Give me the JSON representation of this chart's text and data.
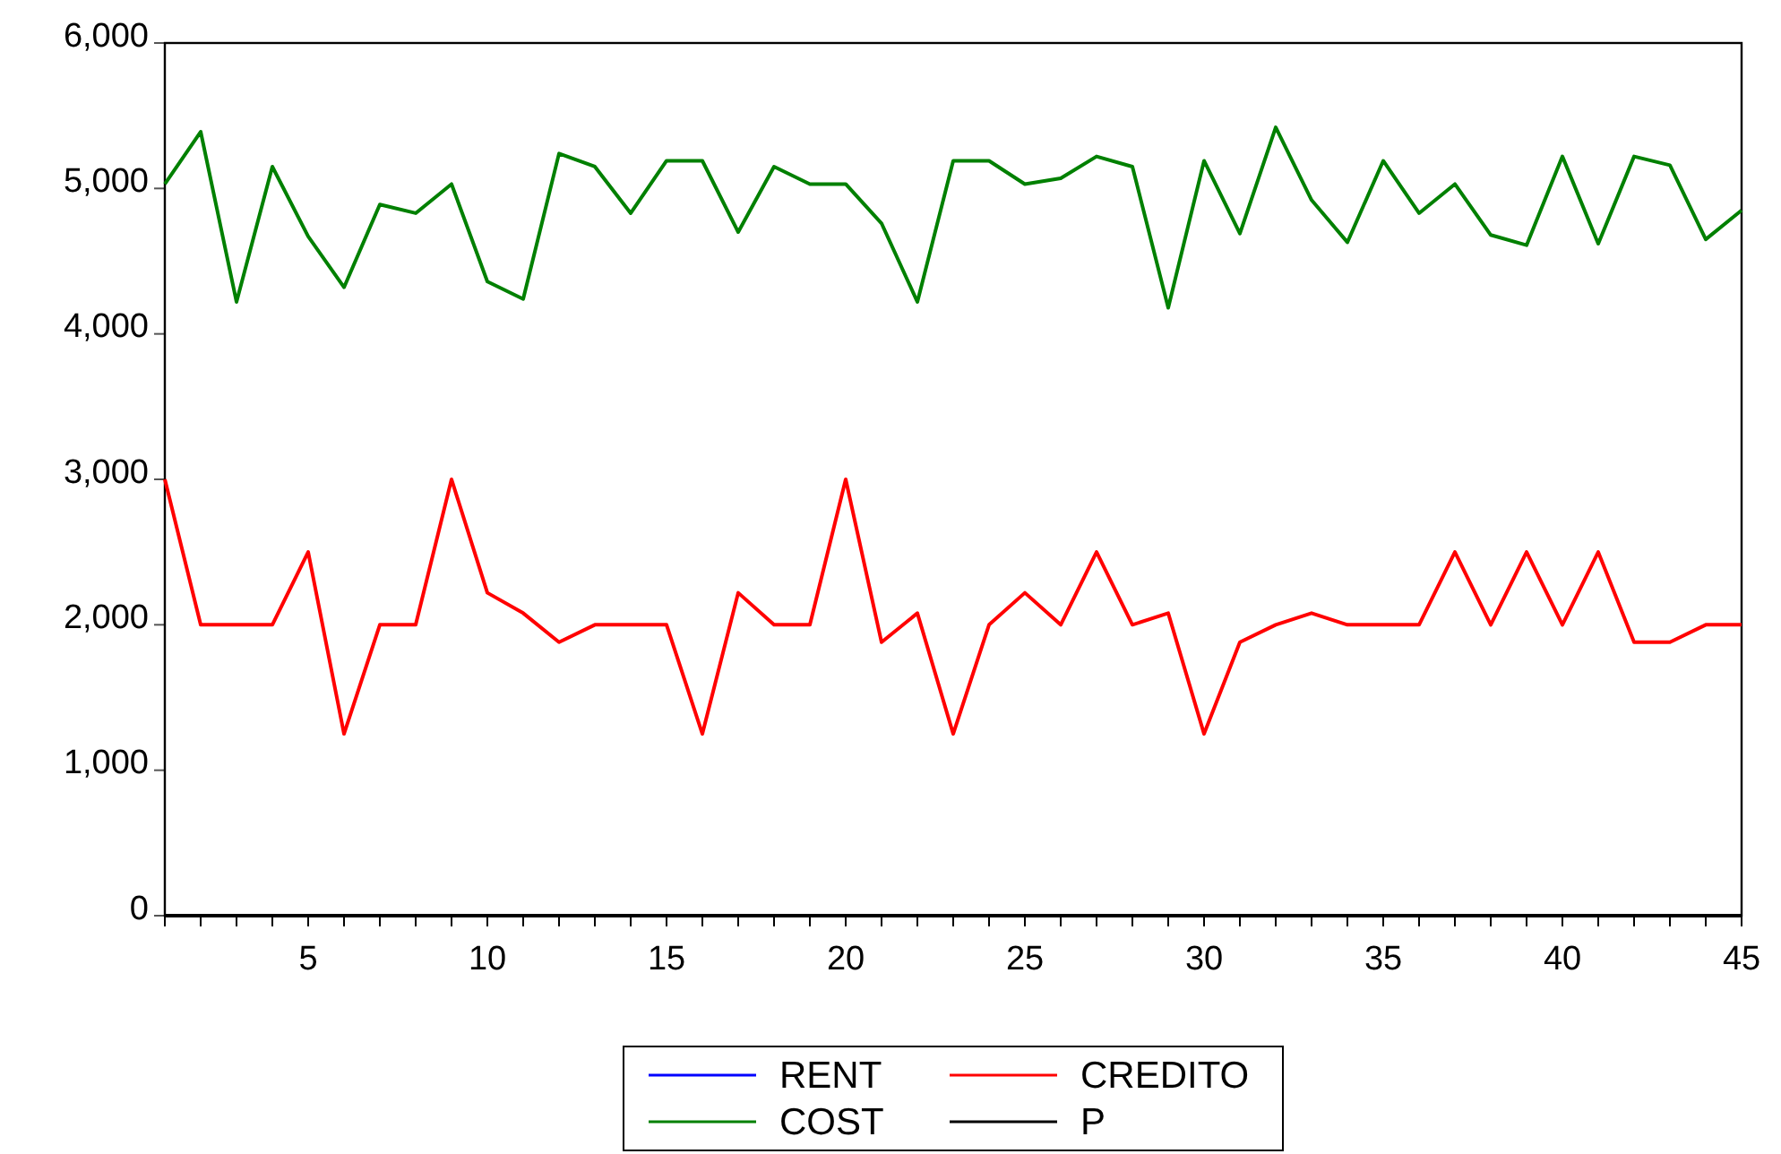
{
  "chart_data": {
    "type": "line",
    "x": [
      1,
      2,
      3,
      4,
      5,
      6,
      7,
      8,
      9,
      10,
      11,
      12,
      13,
      14,
      15,
      16,
      17,
      18,
      19,
      20,
      21,
      22,
      23,
      24,
      25,
      26,
      27,
      28,
      29,
      30,
      31,
      32,
      33,
      34,
      35,
      36,
      37,
      38,
      39,
      40,
      41,
      42,
      43,
      44,
      45
    ],
    "xlim": [
      1,
      45
    ],
    "xticks": [
      {
        "value": 1,
        "label": null
      },
      {
        "value": 2,
        "label": null
      },
      {
        "value": 3,
        "label": null
      },
      {
        "value": 4,
        "label": null
      },
      5,
      {
        "value": 6,
        "label": null
      },
      {
        "value": 7,
        "label": null
      },
      {
        "value": 8,
        "label": null
      },
      {
        "value": 9,
        "label": null
      },
      10,
      {
        "value": 11,
        "label": null
      },
      {
        "value": 12,
        "label": null
      },
      {
        "value": 13,
        "label": null
      },
      {
        "value": 14,
        "label": null
      },
      15,
      {
        "value": 16,
        "label": null
      },
      {
        "value": 17,
        "label": null
      },
      {
        "value": 18,
        "label": null
      },
      {
        "value": 19,
        "label": null
      },
      20,
      {
        "value": 21,
        "label": null
      },
      {
        "value": 22,
        "label": null
      },
      {
        "value": 23,
        "label": null
      },
      {
        "value": 24,
        "label": null
      },
      25,
      {
        "value": 26,
        "label": null
      },
      {
        "value": 27,
        "label": null
      },
      {
        "value": 28,
        "label": null
      },
      {
        "value": 29,
        "label": null
      },
      30,
      {
        "value": 31,
        "label": null
      },
      {
        "value": 32,
        "label": null
      },
      {
        "value": 33,
        "label": null
      },
      {
        "value": 34,
        "label": null
      },
      35,
      {
        "value": 36,
        "label": null
      },
      {
        "value": 37,
        "label": null
      },
      {
        "value": 38,
        "label": null
      },
      {
        "value": 39,
        "label": null
      },
      40,
      {
        "value": 41,
        "label": null
      },
      {
        "value": 42,
        "label": null
      },
      {
        "value": 43,
        "label": null
      },
      {
        "value": 44,
        "label": null
      },
      45
    ],
    "ylim": [
      0,
      6000
    ],
    "yticks": [
      {
        "value": 0,
        "label": "0"
      },
      {
        "value": 1000,
        "label": "1,000"
      },
      {
        "value": 2000,
        "label": "2,000"
      },
      {
        "value": 3000,
        "label": "3,000"
      },
      {
        "value": 4000,
        "label": "4,000"
      },
      {
        "value": 5000,
        "label": "5,000"
      },
      {
        "value": 6000,
        "label": "6,000"
      }
    ],
    "grid": false,
    "legend": "bottom",
    "line_style": "solid",
    "series": [
      {
        "name": "RENT",
        "color": "#0000ff",
        "values": [
          null,
          null,
          null,
          null,
          null,
          null,
          null,
          null,
          null,
          null,
          null,
          null,
          null,
          null,
          null,
          null,
          null,
          null,
          null,
          null,
          null,
          null,
          null,
          null,
          null,
          null,
          null,
          null,
          null,
          null,
          null,
          null,
          null,
          null,
          null,
          null,
          null,
          null,
          null,
          null,
          null,
          null,
          null,
          null,
          null
        ]
      },
      {
        "name": "CREDITO",
        "color": "#ff0000",
        "values": [
          3000,
          2000,
          2000,
          2000,
          2500,
          1250,
          2000,
          2000,
          3000,
          2220,
          2080,
          1880,
          2000,
          2000,
          2000,
          1250,
          2220,
          2000,
          2000,
          3000,
          1880,
          2080,
          1250,
          2000,
          2220,
          2000,
          2500,
          2000,
          2080,
          1250,
          1880,
          2000,
          2080,
          2000,
          2000,
          2000,
          2500,
          2000,
          2500,
          2000,
          2500,
          1880,
          1880,
          2000,
          2000
        ]
      },
      {
        "name": "COST",
        "color": "#008000",
        "values": [
          5030,
          5390,
          4220,
          5150,
          4670,
          4320,
          4890,
          4830,
          5030,
          4360,
          4240,
          5240,
          5150,
          4830,
          5190,
          5190,
          4700,
          5150,
          5030,
          5030,
          4760,
          4220,
          5190,
          5190,
          5030,
          5070,
          5220,
          5150,
          4180,
          5190,
          4690,
          5420,
          4920,
          4630,
          5190,
          4830,
          5030,
          4680,
          4610,
          5220,
          4620,
          5220,
          5160,
          4650,
          4850
        ]
      },
      {
        "name": "P",
        "color": "#000000",
        "values": [
          0,
          0,
          0,
          0,
          0,
          0,
          0,
          0,
          0,
          0,
          0,
          0,
          0,
          0,
          0,
          0,
          0,
          0,
          0,
          0,
          0,
          0,
          0,
          0,
          0,
          0,
          0,
          0,
          0,
          0,
          0,
          0,
          0,
          0,
          0,
          0,
          0,
          0,
          0,
          0,
          0,
          0,
          0,
          0,
          0
        ]
      }
    ]
  }
}
